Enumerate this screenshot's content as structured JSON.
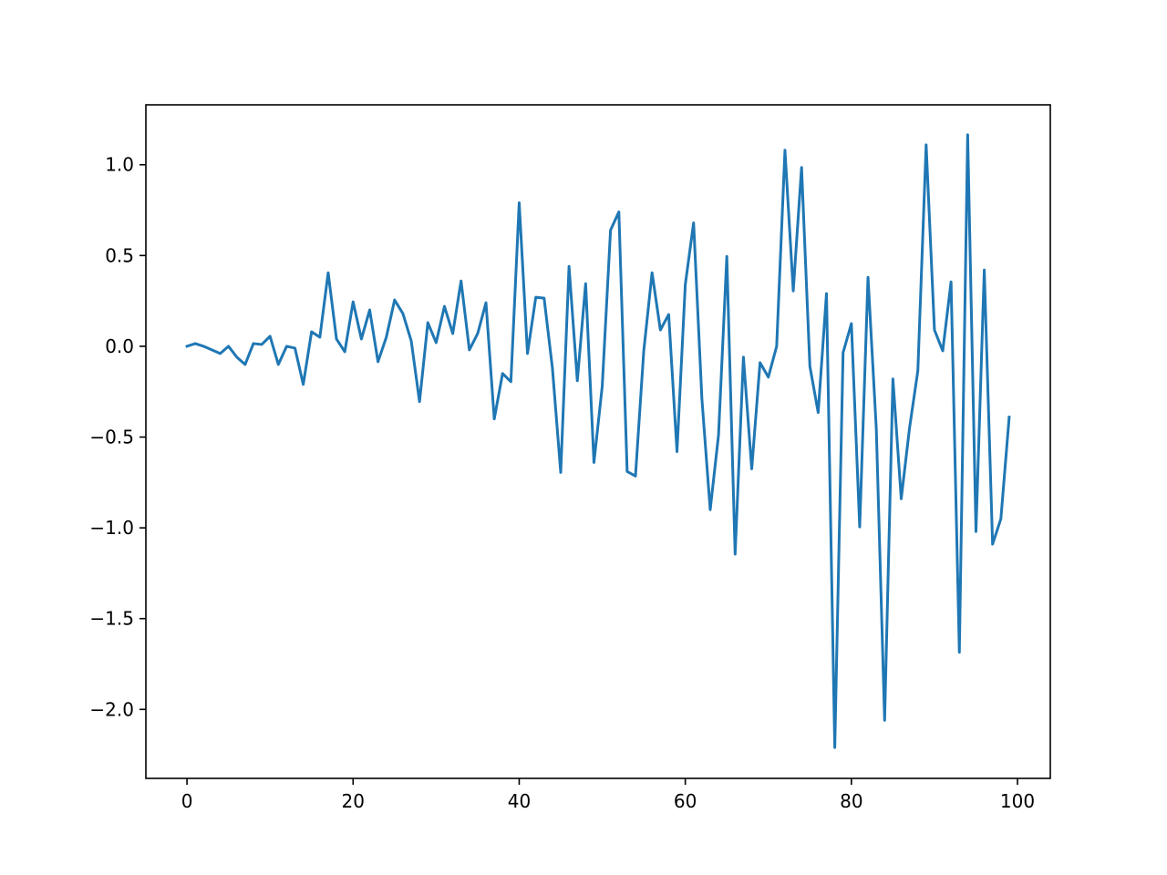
{
  "chart_data": {
    "type": "line",
    "title": "",
    "xlabel": "",
    "ylabel": "",
    "xlim": [
      -4.95,
      103.95
    ],
    "ylim": [
      -2.38,
      1.33
    ],
    "grid": false,
    "x_ticks": [
      0,
      20,
      40,
      60,
      80,
      100
    ],
    "x_tick_labels": [
      "0",
      "20",
      "40",
      "60",
      "80",
      "100"
    ],
    "y_ticks": [
      -2.0,
      -1.5,
      -1.0,
      -0.5,
      0.0,
      0.5,
      1.0
    ],
    "y_tick_labels": [
      "−2.0",
      "−1.5",
      "−1.0",
      "−0.5",
      "0.0",
      "0.5",
      "1.0"
    ],
    "series": [
      {
        "color": "#1f77b4",
        "x": [
          0,
          1,
          2,
          3,
          4,
          5,
          6,
          7,
          8,
          9,
          10,
          11,
          12,
          13,
          14,
          15,
          16,
          17,
          18,
          19,
          20,
          21,
          22,
          23,
          24,
          25,
          26,
          27,
          28,
          29,
          30,
          31,
          32,
          33,
          34,
          35,
          36,
          37,
          38,
          39,
          40,
          41,
          42,
          43,
          44,
          45,
          46,
          47,
          48,
          49,
          50,
          51,
          52,
          53,
          54,
          55,
          56,
          57,
          58,
          59,
          60,
          61,
          62,
          63,
          64,
          65,
          66,
          67,
          68,
          69,
          70,
          71,
          72,
          73,
          74,
          75,
          76,
          77,
          78,
          79,
          80,
          81,
          82,
          83,
          84,
          85,
          86,
          87,
          88,
          89,
          90,
          91,
          92,
          93,
          94,
          95,
          96,
          97,
          98,
          99
        ],
        "values": [
          0.0,
          0.015,
          0.0,
          -0.02,
          -0.04,
          0.0,
          -0.06,
          -0.1,
          0.015,
          0.01,
          0.055,
          -0.1,
          0.0,
          -0.01,
          -0.21,
          0.08,
          0.05,
          0.405,
          0.04,
          -0.03,
          0.245,
          0.04,
          0.2,
          -0.085,
          0.05,
          0.255,
          0.18,
          0.03,
          -0.305,
          0.13,
          0.02,
          0.22,
          0.07,
          0.36,
          -0.02,
          0.07,
          0.24,
          -0.4,
          -0.15,
          -0.195,
          0.79,
          -0.04,
          0.27,
          0.265,
          -0.12,
          -0.695,
          0.44,
          -0.19,
          0.345,
          -0.64,
          -0.22,
          0.64,
          0.74,
          -0.69,
          -0.715,
          -0.025,
          0.405,
          0.09,
          0.175,
          -0.58,
          0.34,
          0.68,
          -0.29,
          -0.9,
          -0.49,
          0.495,
          -1.145,
          -0.06,
          -0.675,
          -0.09,
          -0.17,
          0.0,
          1.08,
          0.305,
          0.985,
          -0.11,
          -0.365,
          0.29,
          -2.21,
          -0.035,
          0.125,
          -0.995,
          0.38,
          -0.455,
          -2.06,
          -0.18,
          -0.84,
          -0.45,
          -0.135,
          1.11,
          0.09,
          -0.025,
          0.355,
          -1.685,
          1.165,
          -1.02,
          0.42,
          -1.09,
          -0.95,
          -0.39
        ]
      }
    ]
  }
}
